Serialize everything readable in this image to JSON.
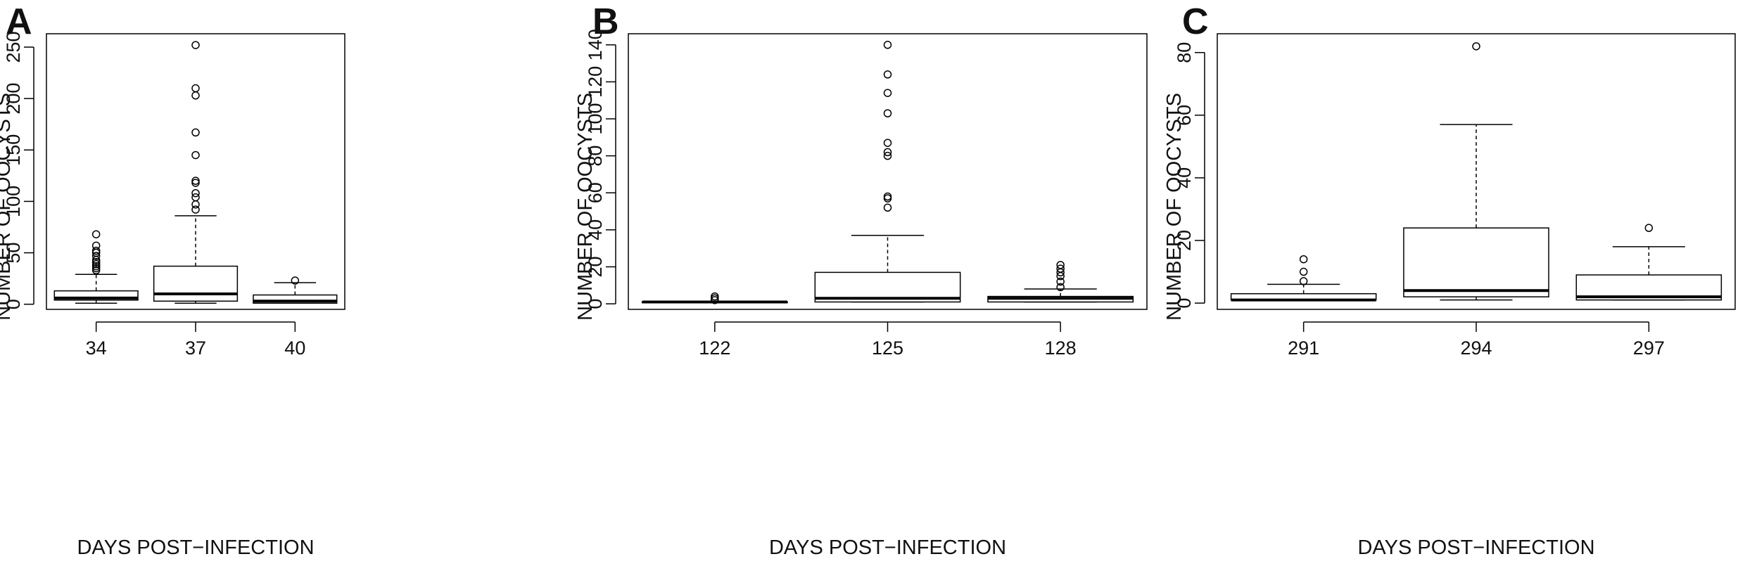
{
  "chart_data": [
    {
      "panel": "A",
      "type": "box",
      "xlabel": "DAYS POST−INFECTION",
      "ylabel": "NUMBER OF OOCYSTS",
      "ylim": [
        -5,
        263
      ],
      "yticks": [
        0,
        50,
        100,
        150,
        200,
        250
      ],
      "categories": [
        "34",
        "37",
        "40"
      ],
      "boxes": [
        {
          "category": "34",
          "whisker_low": 1,
          "q1": 4,
          "median": 6,
          "q3": 13,
          "whisker_high": 29,
          "outliers": [
            33,
            35,
            37,
            39,
            41,
            43,
            47,
            50,
            52,
            57,
            68
          ]
        },
        {
          "category": "37",
          "whisker_low": 1,
          "q1": 3,
          "median": 10,
          "q3": 37,
          "whisker_high": 86,
          "outliers": [
            92,
            97,
            104,
            108,
            118,
            120,
            145,
            167,
            203,
            210,
            252
          ]
        },
        {
          "category": "40",
          "whisker_low": 1,
          "q1": 1,
          "median": 3,
          "q3": 9,
          "whisker_high": 21,
          "outliers": [
            23
          ]
        }
      ]
    },
    {
      "panel": "B",
      "type": "box",
      "xlabel": "DAYS POST−INFECTION",
      "ylabel": "NUMBER OF OOCYSTS",
      "ylim": [
        -3,
        146
      ],
      "yticks": [
        0,
        20,
        40,
        60,
        80,
        100,
        120,
        140
      ],
      "categories": [
        "122",
        "125",
        "128"
      ],
      "boxes": [
        {
          "category": "122",
          "whisker_low": 1,
          "q1": 1,
          "median": 1,
          "q3": 1,
          "whisker_high": 1,
          "outliers": [
            2,
            3,
            4
          ]
        },
        {
          "category": "125",
          "whisker_low": 1,
          "q1": 1,
          "median": 3,
          "q3": 17,
          "whisker_high": 37,
          "outliers": [
            52,
            57,
            58,
            80,
            82,
            87,
            103,
            114,
            124,
            140
          ]
        },
        {
          "category": "128",
          "whisker_low": 1,
          "q1": 1,
          "median": 3,
          "q3": 4,
          "whisker_high": 8,
          "outliers": [
            9,
            12,
            15,
            17,
            19,
            21
          ]
        }
      ]
    },
    {
      "panel": "C",
      "type": "box",
      "xlabel": "DAYS POST−INFECTION",
      "ylabel": "NUMBER OF OOCYSTS",
      "ylim": [
        -2,
        86
      ],
      "yticks": [
        0,
        20,
        40,
        60,
        80
      ],
      "categories": [
        "291",
        "294",
        "297"
      ],
      "boxes": [
        {
          "category": "291",
          "whisker_low": 1,
          "q1": 1,
          "median": 1,
          "q3": 3,
          "whisker_high": 6,
          "outliers": [
            7,
            10,
            14
          ]
        },
        {
          "category": "294",
          "whisker_low": 1,
          "q1": 2,
          "median": 4,
          "q3": 24,
          "whisker_high": 57,
          "outliers": [
            82
          ]
        },
        {
          "category": "297",
          "whisker_low": 1,
          "q1": 1,
          "median": 2,
          "q3": 9,
          "whisker_high": 18,
          "outliers": [
            24
          ]
        }
      ]
    }
  ]
}
